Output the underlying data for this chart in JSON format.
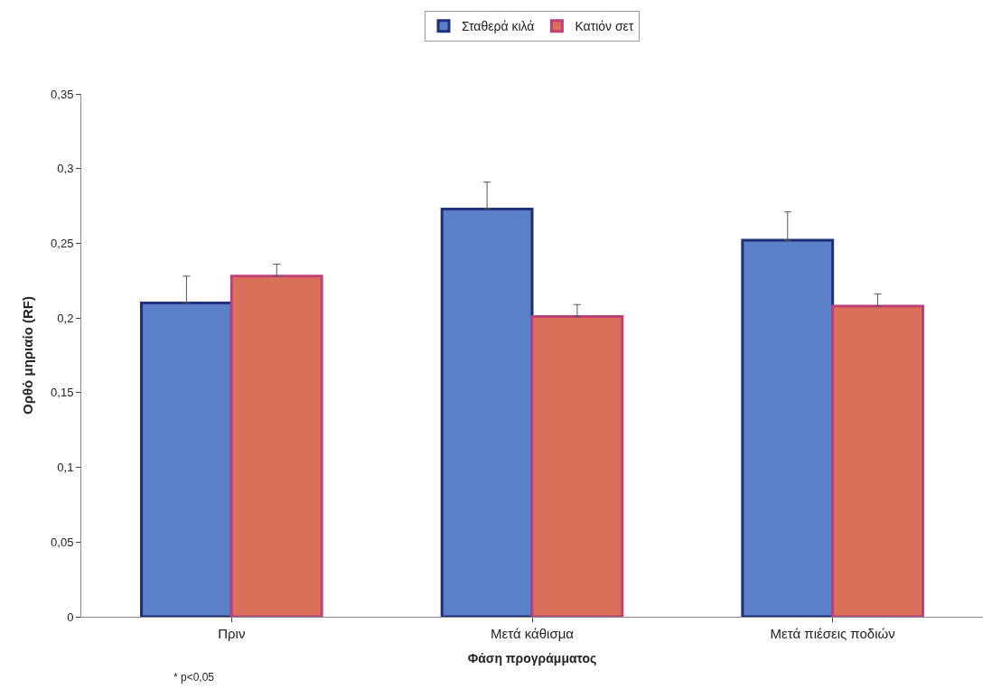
{
  "chart_data": {
    "type": "bar",
    "xlabel": "Φάση προγράμματος",
    "ylabel": "Ορθό μηριαίο (RF)",
    "categories": [
      "Πριν",
      "Μετά κάθισμα",
      "Μετά πιέσεις ποδιών"
    ],
    "series": [
      {
        "name": "Σταθερά κιλά",
        "color": "#5b80c8",
        "values": [
          0.21,
          0.273,
          0.252
        ],
        "errors": [
          [
            0.21,
            0.228
          ],
          [
            0.273,
            0.291
          ],
          [
            0.252,
            0.271
          ]
        ]
      },
      {
        "name": "Κατιόν σετ",
        "color": "#d9705a",
        "values": [
          0.228,
          0.201,
          0.208
        ],
        "errors": [
          [
            0.228,
            0.236
          ],
          [
            0.201,
            0.209
          ],
          [
            0.208,
            0.216
          ]
        ]
      }
    ],
    "ylim": [
      0,
      0.35
    ],
    "yticks": [
      {
        "value": 0,
        "label": "0"
      },
      {
        "value": 0.05,
        "label": "0,05"
      },
      {
        "value": 0.1,
        "label": "0,1"
      },
      {
        "value": 0.15,
        "label": "0,15"
      },
      {
        "value": 0.2,
        "label": "0,2"
      },
      {
        "value": 0.25,
        "label": "0,25"
      },
      {
        "value": 0.3,
        "label": "0,3"
      },
      {
        "value": 0.35,
        "label": "0,35"
      }
    ],
    "legend": "top",
    "annotations": [
      "* p<0,05"
    ]
  }
}
